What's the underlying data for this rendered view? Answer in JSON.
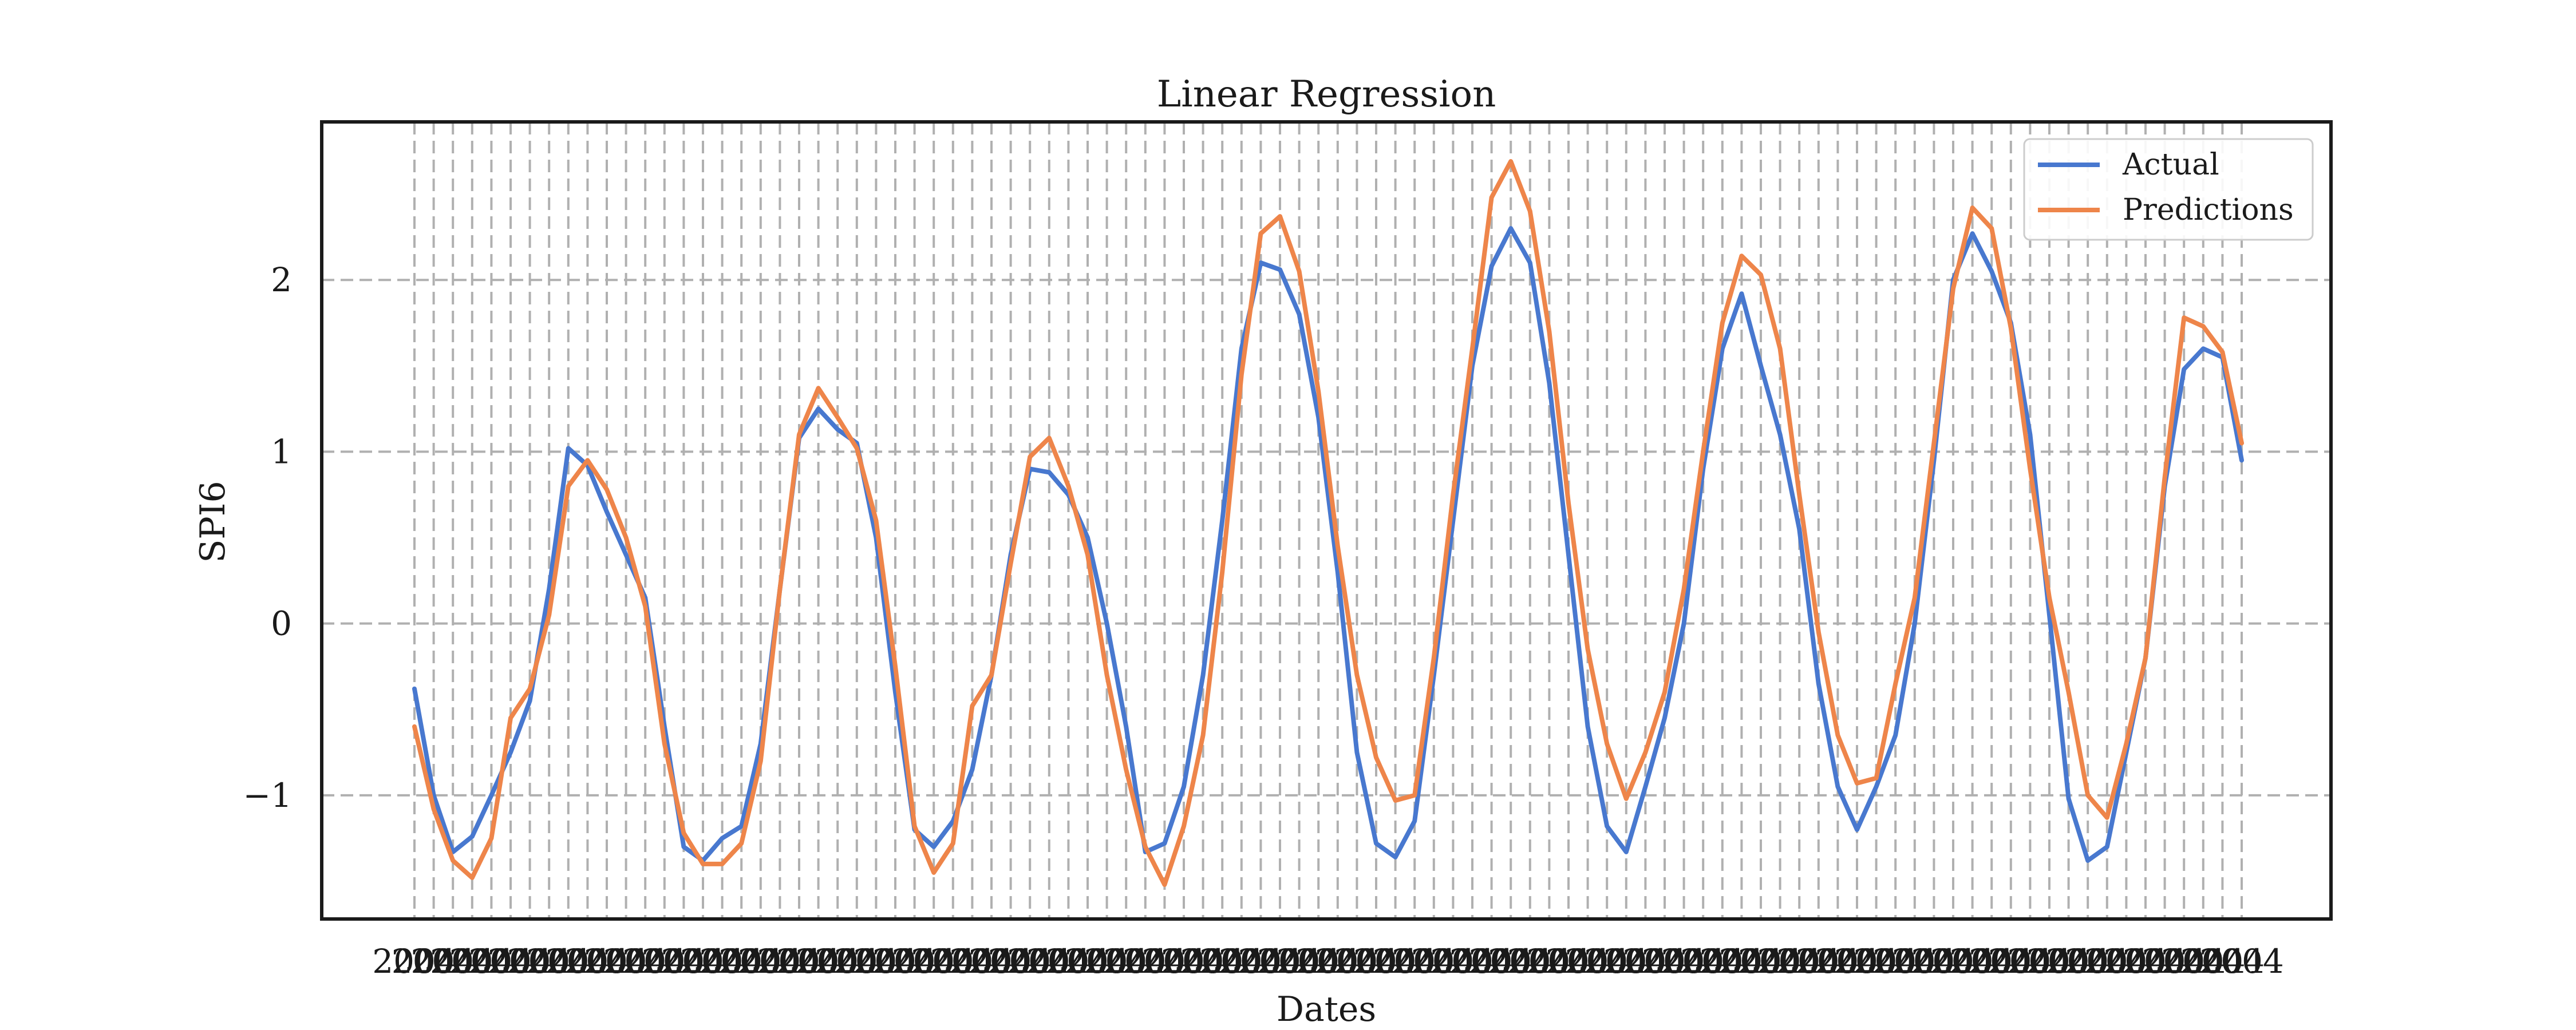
{
  "chart_data": {
    "type": "line",
    "title": "Linear Regression",
    "xlabel": "Dates",
    "ylabel": "SPI6",
    "ylim": [
      -1.72,
      2.92
    ],
    "yticks": [
      -1,
      0,
      1,
      2
    ],
    "ytick_labels": [
      "−1",
      "0",
      "1",
      "2"
    ],
    "grid": true,
    "legend_position": "top-right",
    "xtick_labels_overlapping": "2004…2015",
    "series": [
      {
        "name": "Actual",
        "color": "#4878cf",
        "values": [
          -0.38,
          -1.0,
          -1.33,
          -1.24,
          -1.0,
          -0.75,
          -0.45,
          0.2,
          1.02,
          0.92,
          0.65,
          0.4,
          0.15,
          -0.6,
          -1.3,
          -1.38,
          -1.25,
          -1.18,
          -0.7,
          0.2,
          1.08,
          1.25,
          1.13,
          1.05,
          0.5,
          -0.4,
          -1.2,
          -1.3,
          -1.15,
          -0.85,
          -0.3,
          0.4,
          0.9,
          0.88,
          0.75,
          0.5,
          0.0,
          -0.6,
          -1.33,
          -1.28,
          -0.95,
          -0.3,
          0.6,
          1.6,
          2.1,
          2.06,
          1.8,
          1.2,
          0.3,
          -0.75,
          -1.28,
          -1.36,
          -1.15,
          -0.3,
          0.6,
          1.5,
          2.08,
          2.3,
          2.1,
          1.4,
          0.4,
          -0.6,
          -1.18,
          -1.33,
          -0.95,
          -0.55,
          0.0,
          0.9,
          1.6,
          1.92,
          1.5,
          1.1,
          0.55,
          -0.35,
          -0.95,
          -1.2,
          -0.95,
          -0.65,
          0.0,
          0.95,
          2.0,
          2.27,
          2.05,
          1.75,
          1.1,
          0.05,
          -1.02,
          -1.38,
          -1.3,
          -0.75,
          -0.2,
          0.8,
          1.48,
          1.6,
          1.55,
          0.95
        ]
      },
      {
        "name": "Predictions",
        "color": "#ee854a",
        "values": [
          -0.6,
          -1.08,
          -1.38,
          -1.48,
          -1.25,
          -0.55,
          -0.38,
          0.05,
          0.8,
          0.95,
          0.78,
          0.5,
          0.1,
          -0.7,
          -1.22,
          -1.4,
          -1.4,
          -1.28,
          -0.8,
          0.2,
          1.1,
          1.37,
          1.2,
          1.02,
          0.6,
          -0.25,
          -1.18,
          -1.45,
          -1.28,
          -0.48,
          -0.3,
          0.35,
          0.97,
          1.08,
          0.8,
          0.4,
          -0.3,
          -0.85,
          -1.3,
          -1.52,
          -1.18,
          -0.65,
          0.3,
          1.45,
          2.27,
          2.37,
          2.05,
          1.35,
          0.45,
          -0.3,
          -0.78,
          -1.03,
          -1.0,
          -0.2,
          0.75,
          1.6,
          2.48,
          2.69,
          2.4,
          1.7,
          0.7,
          -0.15,
          -0.7,
          -1.02,
          -0.75,
          -0.4,
          0.2,
          1.0,
          1.75,
          2.14,
          2.03,
          1.6,
          0.75,
          -0.05,
          -0.65,
          -0.93,
          -0.9,
          -0.35,
          0.15,
          1.05,
          1.95,
          2.42,
          2.3,
          1.72,
          0.9,
          0.15,
          -0.4,
          -1.0,
          -1.13,
          -0.7,
          -0.2,
          0.85,
          1.78,
          1.73,
          1.58,
          1.05
        ]
      }
    ]
  }
}
